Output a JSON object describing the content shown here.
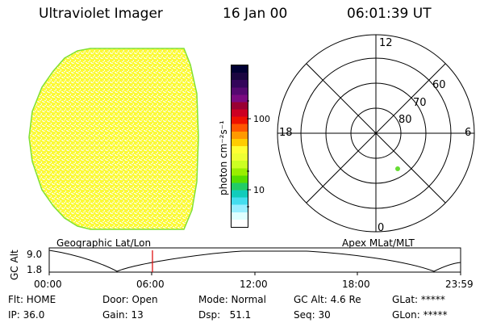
{
  "header": {
    "title": "Ultraviolet Imager",
    "date": "16 Jan 00",
    "time": "06:01:39 UT"
  },
  "colorbar": {
    "unit_label": "photon cm⁻²s⁻¹",
    "tick_labels": [
      "100",
      "10"
    ],
    "colors": [
      "#000033",
      "#1a0540",
      "#33055a",
      "#550870",
      "#7a0a80",
      "#990033",
      "#cc0022",
      "#ee1100",
      "#ff5500",
      "#ff9900",
      "#ffcc00",
      "#ffff33",
      "#eeff33",
      "#ccff22",
      "#99ee00",
      "#55dd00",
      "#22cc66",
      "#11ccbb",
      "#44ddee",
      "#99eeff",
      "#dfffff",
      "#ffffff"
    ]
  },
  "polar_plot": {
    "mlt_labels": {
      "top": "12",
      "left": "18",
      "right": "6",
      "bottom": "0"
    },
    "lat_labels": [
      "60",
      "70",
      "80"
    ]
  },
  "image": {
    "colors": {
      "base": "#fcfa35",
      "speckle": "#fbfde0",
      "rim": "#80e035"
    }
  },
  "altitude_plot": {
    "left_label": "Geographic Lat/Lon",
    "right_label": "Apex MLat/MLT",
    "axis_label": "GC Alt",
    "y_ticks": [
      "9.0",
      "1.8"
    ],
    "x_ticks": [
      "00:00",
      "06:00",
      "12:00",
      "18:00",
      "23:59"
    ]
  },
  "info": {
    "flt": "Flt: HOME",
    "ip": "IP: 36.0",
    "door": "Door: Open",
    "gain": "Gain: 13",
    "mode": "Mode: Normal",
    "dsp": "Dsp:   51.1",
    "gc_alt": "GC Alt: 4.6 Re",
    "seq": "Seq: 30",
    "glat": "GLat: *****",
    "glon": "GLon: *****"
  }
}
